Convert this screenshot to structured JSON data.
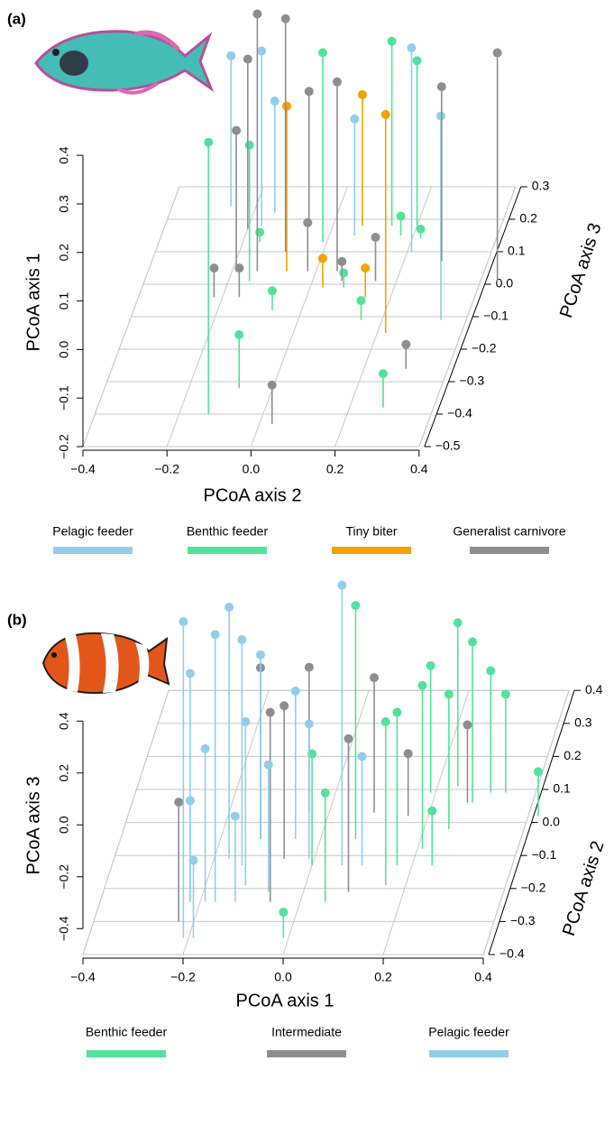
{
  "chart_data": [
    {
      "type": "scatter",
      "label": "(a)",
      "x_label": "PCoA axis 2",
      "y_label": "PCoA axis 3",
      "z_label": "PCoA axis 1",
      "xlim": [
        -0.4,
        0.4
      ],
      "xticks": [
        {
          "value": -0.4,
          "label": "−0.4"
        },
        {
          "value": -0.2,
          "label": "−0.2"
        },
        {
          "value": 0,
          "label": "0.0"
        },
        0.2,
        0.4
      ],
      "ylim": [
        -0.5,
        0.3
      ],
      "yticks": [
        {
          "value": -0.5,
          "label": "−0.5"
        },
        {
          "value": -0.4,
          "label": "−0.4"
        },
        {
          "value": -0.3,
          "label": "−0.3"
        },
        {
          "value": -0.2,
          "label": "−0.2"
        },
        {
          "value": -0.1,
          "label": "−0.1"
        },
        {
          "value": 0,
          "label": "0.0"
        },
        0.1,
        0.2,
        0.3
      ],
      "zlim": [
        -0.2,
        0.4
      ],
      "zticks": [
        {
          "value": -0.2,
          "label": "−0.2"
        },
        {
          "value": -0.1,
          "label": "−0.1"
        },
        {
          "value": 0,
          "label": "0.0"
        },
        0.1,
        0.2,
        0.3,
        0.4
      ],
      "grid": true,
      "series": [
        {
          "name": "Pelagic feeder",
          "color": "#8fcfec",
          "x": [
            -0.17,
            0.21,
            0.34,
            0.06,
            -0.15,
            -0.26
          ],
          "y": [
            0.18,
            0.1,
            -0.11,
            0.15,
            0.22,
            0.24
          ],
          "z": [
            0.16,
            0.22,
            0.22,
            0.04,
            0.03,
            0.11
          ]
        },
        {
          "name": "Benthic feeder",
          "color": "#52e39a",
          "x": [
            -0.13,
            -0.08,
            -0.15,
            -0.01,
            0.14,
            0.2,
            0.28,
            -0.07,
            0.15,
            0.22,
            -0.16,
            0.17,
            0.08
          ],
          "y": [
            -0.4,
            -0.32,
            0.01,
            0.13,
            0.18,
            0.18,
            -0.38,
            -0.08,
            -0.11,
            0.14,
            0.13,
            0.15,
            -0.01
          ],
          "z": [
            0.36,
            -0.09,
            0.08,
            0.19,
            0.18,
            0.14,
            -0.13,
            -0.16,
            -0.16,
            -0.18,
            -0.18,
            -0.16,
            -0.17
          ]
        },
        {
          "name": "Tiny biter",
          "color": "#f5a100",
          "x": [
            -0.07,
            0.07,
            0.22,
            0.03,
            0.14
          ],
          "y": [
            0.04,
            0.18,
            -0.15,
            -0.01,
            -0.04
          ],
          "z": [
            0.14,
            0.07,
            0.25,
            -0.14,
            -0.14
          ]
        },
        {
          "name": "Generalist carnivore",
          "color": "#8e8e8e",
          "x": [
            -0.14,
            0.44,
            -0.2,
            0.29,
            -0.06,
            -0.19,
            0.05,
            -0.22,
            0.03,
            0.3,
            -0.02,
            0.15,
            -0.09,
            -0.16,
            0.07
          ],
          "y": [
            0.04,
            0.01,
            0.17,
            0.07,
            0.19,
            0.04,
            0.04,
            -0.04,
            -0.43,
            -0.26,
            0.04,
            0.01,
            0.1,
            -0.04,
            0.01
          ],
          "z": [
            0.33,
            0.27,
            0.15,
            0.16,
            0.07,
            0.09,
            0.19,
            -0.14,
            -0.12,
            -0.15,
            -0.1,
            -0.11,
            0.28,
            -0.14,
            -0.16
          ]
        }
      ]
    },
    {
      "type": "scatter",
      "label": "(b)",
      "x_label": "PCoA axis 1",
      "y_label": "PCoA axis 2",
      "z_label": "PCoA axis 3",
      "xlim": [
        -0.4,
        0.4
      ],
      "xticks": [
        {
          "value": -0.4,
          "label": "−0.4"
        },
        {
          "value": -0.2,
          "label": "−0.2"
        },
        {
          "value": 0,
          "label": "0.0"
        },
        0.2,
        0.4
      ],
      "ylim": [
        -0.4,
        0.4
      ],
      "yticks": [
        {
          "value": -0.4,
          "label": "−0.4"
        },
        {
          "value": -0.3,
          "label": "−0.3"
        },
        {
          "value": -0.2,
          "label": "−0.2"
        },
        {
          "value": -0.1,
          "label": "−0.1"
        },
        {
          "value": 0,
          "label": "0.0"
        },
        0.1,
        0.2,
        0.3,
        0.4
      ],
      "zlim": [
        -0.5,
        0.4
      ],
      "zticks": [
        {
          "value": -0.4,
          "label": "−0.4"
        },
        {
          "value": -0.2,
          "label": "−0.2"
        },
        {
          "value": 0,
          "label": "0.0"
        },
        0.2,
        0.4
      ],
      "grid": true,
      "series": [
        {
          "name": "Benthic feeder",
          "color": "#52e39a",
          "x": [
            0.07,
            0.19,
            0.24,
            0.28,
            0.31,
            0.42,
            0.17,
            0.24,
            -0.01,
            0.05,
            0.0,
            0.16,
            0.34,
            0.25,
            0.21
          ],
          "y": [
            -0.05,
            0.09,
            0.11,
            0.06,
            0.09,
            0.02,
            -0.13,
            -0.13,
            -0.35,
            -0.24,
            -0.13,
            -0.19,
            0.09,
            -0.02,
            -0.08
          ],
          "z": [
            0.4,
            -0.01,
            0.13,
            0.12,
            -0.03,
            -0.33,
            0.09,
            -0.29,
            -0.4,
            -0.08,
            -0.07,
            0.13,
            -0.12,
            0.02,
            0.13
          ]
        },
        {
          "name": "Intermediate",
          "color": "#8e8e8e",
          "x": [
            -0.12,
            -0.04,
            0.09,
            -0.23,
            0.16,
            0.27,
            -0.06,
            0.09,
            -0.06
          ],
          "y": [
            -0.05,
            0.03,
            0.03,
            -0.3,
            0.02,
            0.06,
            -0.11,
            -0.21,
            -0.24
          ],
          "z": [
            0.16,
            0.06,
            0.02,
            -0.04,
            -0.26,
            -0.2,
            0.09,
            0.09,
            0.23
          ]
        },
        {
          "name": "Pelagic feeder",
          "color": "#8fcfec",
          "x": [
            0.06,
            -0.21,
            -0.17,
            -0.17,
            -0.14,
            -0.12,
            -0.22,
            -0.19,
            -0.22,
            -0.19,
            -0.13,
            -0.05,
            -0.01,
            0.1,
            -0.12,
            -0.07
          ],
          "y": [
            -0.13,
            -0.35,
            -0.24,
            -0.11,
            -0.13,
            -0.05,
            -0.24,
            -0.24,
            -0.24,
            -0.35,
            -0.24,
            -0.05,
            -0.11,
            -0.13,
            -0.19,
            -0.21
          ],
          "z": [
            0.58,
            0.72,
            0.53,
            0.47,
            0.37,
            0.21,
            0.38,
            0.09,
            -0.11,
            -0.2,
            -0.17,
            0.07,
            0.02,
            -0.08,
            0.13,
            -0.01
          ]
        }
      ]
    }
  ]
}
